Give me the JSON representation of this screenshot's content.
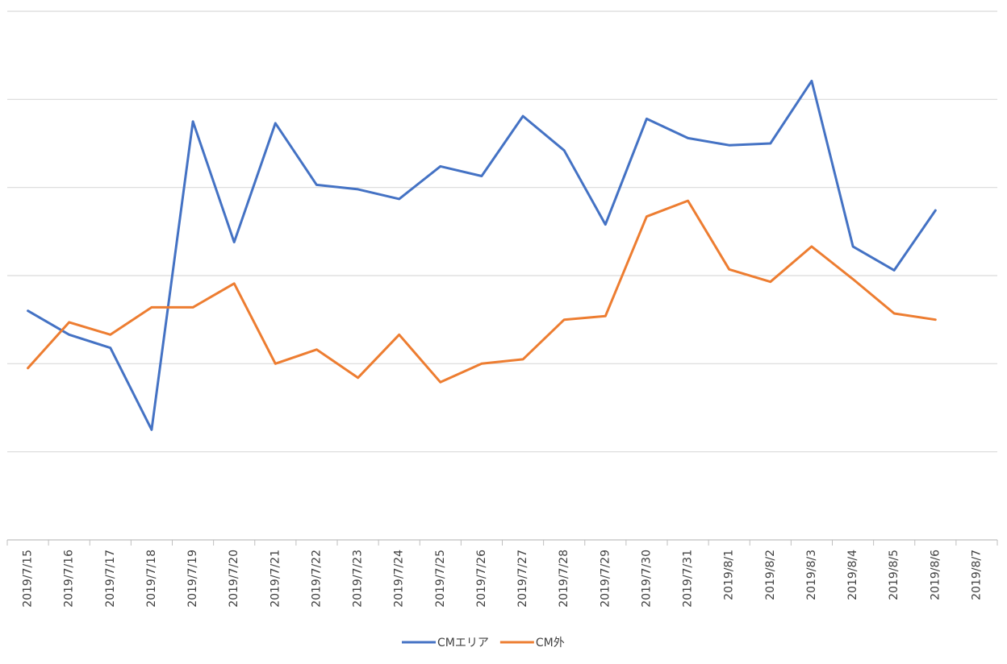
{
  "chart_data": {
    "type": "line",
    "title": "",
    "xlabel": "",
    "ylabel": "",
    "y_tick_labels_visible": false,
    "grid": true,
    "legend_position": "bottom",
    "categories": [
      "2019/7/15",
      "2019/7/16",
      "2019/7/17",
      "2019/7/18",
      "2019/7/19",
      "2019/7/20",
      "2019/7/21",
      "2019/7/22",
      "2019/7/23",
      "2019/7/24",
      "2019/7/25",
      "2019/7/26",
      "2019/7/27",
      "2019/7/28",
      "2019/7/29",
      "2019/7/30",
      "2019/7/31",
      "2019/8/1",
      "2019/8/2",
      "2019/8/3",
      "2019/8/4",
      "2019/8/5",
      "2019/8/6",
      "2019/8/7"
    ],
    "ylim": [
      0,
      6
    ],
    "series": [
      {
        "name": "CMエリア",
        "color": "#4472c4",
        "values": [
          2.6,
          2.33,
          2.18,
          1.25,
          4.75,
          3.38,
          4.73,
          4.03,
          3.98,
          3.87,
          4.24,
          4.13,
          4.81,
          4.42,
          3.58,
          4.78,
          4.56,
          4.48,
          4.5,
          5.21,
          3.33,
          3.06,
          3.74,
          null
        ]
      },
      {
        "name": "CM外",
        "color": "#ed7d31",
        "values": [
          1.95,
          2.47,
          2.33,
          2.64,
          2.64,
          2.91,
          2.0,
          2.16,
          1.84,
          2.33,
          1.79,
          2.0,
          2.05,
          2.5,
          2.54,
          3.67,
          3.85,
          3.07,
          2.93,
          3.33,
          2.96,
          2.57,
          2.5,
          null
        ]
      }
    ]
  }
}
